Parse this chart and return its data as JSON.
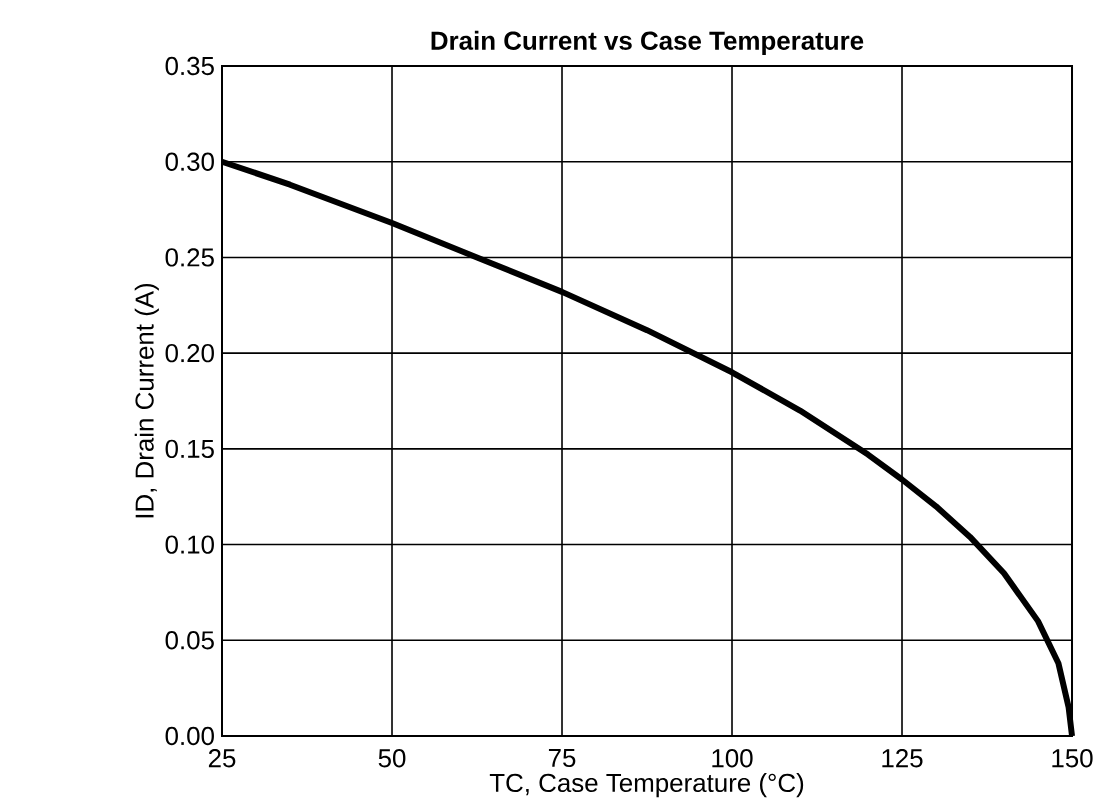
{
  "chart_data": {
    "type": "line",
    "title": "Drain Current vs Case Temperature",
    "xlabel": "TC, Case Temperature (°C)",
    "ylabel": "ID, Drain Current (A)",
    "x": [
      25,
      35,
      50,
      62.5,
      75,
      87.5,
      100,
      110,
      120,
      125,
      130,
      135,
      140,
      145,
      148,
      149.5,
      150
    ],
    "series": [
      {
        "color": "#000000",
        "values": [
          0.3,
          0.288,
          0.268,
          0.25,
          0.232,
          0.212,
          0.19,
          0.17,
          0.147,
          0.134,
          0.12,
          0.104,
          0.085,
          0.06,
          0.038,
          0.015,
          0.0
        ]
      }
    ],
    "xlim": [
      25,
      150
    ],
    "ylim": [
      0,
      0.35
    ],
    "xticks": [
      25,
      50,
      75,
      100,
      125,
      150
    ],
    "yticks": [
      {
        "value": 0,
        "label": "0.00"
      },
      {
        "value": 0.05,
        "label": "0.05"
      },
      {
        "value": 0.1,
        "label": "0.10"
      },
      {
        "value": 0.15,
        "label": "0.15"
      },
      {
        "value": 0.2,
        "label": "0.20"
      },
      {
        "value": 0.25,
        "label": "0.25"
      },
      {
        "value": 0.3,
        "label": "0.30"
      },
      {
        "value": 0.35,
        "label": "0.35"
      }
    ],
    "grid": true
  }
}
